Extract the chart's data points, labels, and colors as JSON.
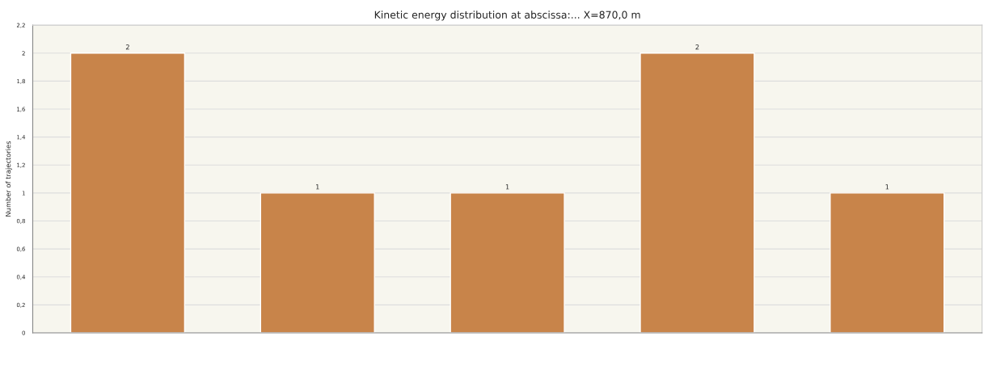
{
  "chart_data": {
    "type": "bar",
    "title": "Kinetic energy distribution at abscissa:... X=870,0 m",
    "ylabel": "Number of trajectories",
    "categories": [
      null,
      null,
      null,
      null,
      null
    ],
    "values": [
      2,
      1,
      1,
      2,
      1
    ],
    "color": "#c8844a",
    "ylim": [
      0,
      2.2
    ],
    "yticks": [
      0,
      {
        "value": 0.2,
        "label": "0,2"
      },
      {
        "value": 0.4,
        "label": "0,4"
      },
      {
        "value": 0.6,
        "label": "0,6"
      },
      {
        "value": 0.8,
        "label": "0,8"
      },
      1,
      {
        "value": 1.2,
        "label": "1,2"
      },
      {
        "value": 1.4,
        "label": "1,4"
      },
      {
        "value": 1.6,
        "label": "1,6"
      },
      {
        "value": 1.8,
        "label": "1,8"
      },
      2,
      {
        "value": 2.2,
        "label": "2,2"
      }
    ],
    "grid": "y",
    "data_labels": true
  }
}
